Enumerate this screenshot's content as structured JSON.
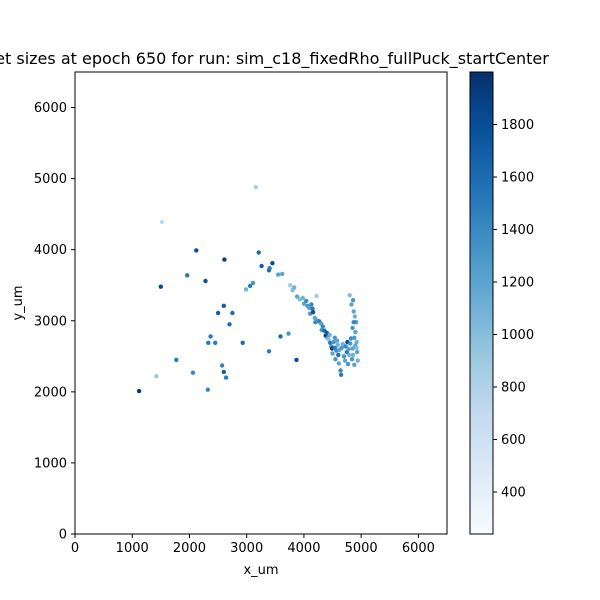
{
  "chart_data": {
    "type": "scatter",
    "title": "et sizes at epoch 650 for run: sim_c18_fixedRho_fullPuck_startCenter",
    "xlabel": "x_um",
    "ylabel": "y_um",
    "xlim": [
      0,
      6500
    ],
    "ylim": [
      0,
      6500
    ],
    "x_ticks": [
      0,
      1000,
      2000,
      3000,
      4000,
      5000,
      6000
    ],
    "y_ticks": [
      0,
      1000,
      2000,
      3000,
      4000,
      5000,
      6000
    ],
    "colorbar": {
      "colormap": "Blues",
      "min": 240,
      "max": 2000,
      "ticks": [
        400,
        600,
        800,
        1000,
        1200,
        1400,
        1600,
        1800
      ]
    },
    "grid": false,
    "legend": "none",
    "points": [
      [
        1120,
        2010,
        1950
      ],
      [
        1420,
        2220,
        900
      ],
      [
        1520,
        4390,
        720
      ],
      [
        1500,
        3480,
        1850
      ],
      [
        1770,
        2450,
        1500
      ],
      [
        1960,
        3640,
        1550
      ],
      [
        2060,
        2270,
        1400
      ],
      [
        2120,
        3990,
        1800
      ],
      [
        2280,
        3560,
        1800
      ],
      [
        2320,
        2030,
        1400
      ],
      [
        2330,
        2690,
        1500
      ],
      [
        2370,
        2780,
        1500
      ],
      [
        2450,
        2690,
        1500
      ],
      [
        2500,
        3110,
        1700
      ],
      [
        2570,
        2370,
        1450
      ],
      [
        2600,
        3210,
        1700
      ],
      [
        2600,
        2280,
        1700
      ],
      [
        2610,
        3860,
        1900
      ],
      [
        2640,
        2200,
        1500
      ],
      [
        2700,
        2950,
        1600
      ],
      [
        2750,
        3110,
        1600
      ],
      [
        2930,
        2690,
        1600
      ],
      [
        2990,
        3440,
        1100
      ],
      [
        3060,
        3490,
        1500
      ],
      [
        3110,
        3530,
        1300
      ],
      [
        3160,
        4880,
        850
      ],
      [
        3210,
        3960,
        1600
      ],
      [
        3260,
        3770,
        1700
      ],
      [
        3390,
        3710,
        1600
      ],
      [
        3400,
        3740,
        1500
      ],
      [
        3390,
        2570,
        1500
      ],
      [
        3450,
        3810,
        1800
      ],
      [
        3550,
        3650,
        1200
      ],
      [
        3620,
        3660,
        1200
      ],
      [
        3590,
        2780,
        1600
      ],
      [
        3730,
        2820,
        1300
      ],
      [
        3760,
        3500,
        900
      ],
      [
        3800,
        3430,
        1000
      ],
      [
        3830,
        3470,
        1100
      ],
      [
        3880,
        3340,
        1200
      ],
      [
        3870,
        2450,
        1800
      ],
      [
        3930,
        3300,
        1000
      ],
      [
        3980,
        3320,
        1100
      ],
      [
        4000,
        3240,
        1200
      ],
      [
        4040,
        3280,
        1400
      ],
      [
        4060,
        3210,
        1300
      ],
      [
        4090,
        3180,
        1200
      ],
      [
        4110,
        3100,
        1300
      ],
      [
        4130,
        3230,
        1400
      ],
      [
        4150,
        3170,
        1500
      ],
      [
        4160,
        3120,
        1800
      ],
      [
        4190,
        3040,
        1200
      ],
      [
        4200,
        2980,
        1400
      ],
      [
        4220,
        3350,
        900
      ],
      [
        4240,
        3000,
        1300
      ],
      [
        4270,
        2990,
        1500
      ],
      [
        4300,
        2960,
        1200
      ],
      [
        4310,
        2870,
        1300
      ],
      [
        4330,
        2920,
        1400
      ],
      [
        4360,
        2860,
        1600
      ],
      [
        4380,
        2790,
        1900
      ],
      [
        4400,
        2830,
        1700
      ],
      [
        4410,
        2760,
        1300
      ],
      [
        4430,
        2740,
        1000
      ],
      [
        4450,
        2800,
        1100
      ],
      [
        4460,
        2690,
        1500
      ],
      [
        4480,
        2640,
        1300
      ],
      [
        4490,
        2610,
        1900
      ],
      [
        4500,
        2540,
        1200
      ],
      [
        4520,
        2700,
        1300
      ],
      [
        4540,
        2620,
        1500
      ],
      [
        4550,
        2460,
        1300
      ],
      [
        4570,
        2580,
        1400
      ],
      [
        4590,
        2660,
        1100
      ],
      [
        4600,
        2520,
        1600
      ],
      [
        4610,
        2400,
        1200
      ],
      [
        4620,
        2590,
        1200
      ],
      [
        4640,
        2300,
        1400
      ],
      [
        4650,
        2240,
        1500
      ],
      [
        4660,
        2620,
        1300
      ],
      [
        4680,
        2670,
        1100
      ],
      [
        4700,
        2500,
        1300
      ],
      [
        4720,
        2440,
        1200
      ],
      [
        4730,
        2640,
        1400
      ],
      [
        4750,
        2560,
        1500
      ],
      [
        4760,
        2700,
        1800
      ],
      [
        4770,
        2390,
        1300
      ],
      [
        4780,
        2600,
        1200
      ],
      [
        4790,
        2520,
        1100
      ],
      [
        4800,
        3360,
        1000
      ],
      [
        4810,
        2680,
        1300
      ],
      [
        4820,
        2750,
        1400
      ],
      [
        4830,
        3230,
        1200
      ],
      [
        4840,
        2460,
        1300
      ],
      [
        4850,
        2610,
        1200
      ],
      [
        4860,
        3290,
        1300
      ],
      [
        4870,
        3130,
        1200
      ],
      [
        4880,
        2760,
        1300
      ],
      [
        4890,
        3060,
        1100
      ],
      [
        4900,
        2840,
        1200
      ],
      [
        4910,
        2980,
        1300
      ],
      [
        4920,
        2700,
        1100
      ],
      [
        4930,
        2560,
        1200
      ],
      [
        4940,
        2440,
        1100
      ],
      [
        4870,
        2980,
        1400
      ],
      [
        4850,
        2900,
        1300
      ],
      [
        4900,
        2650,
        1200
      ],
      [
        4860,
        2520,
        1100
      ],
      [
        4880,
        2380,
        1200
      ],
      [
        4920,
        2620,
        1000
      ],
      [
        4540,
        2760,
        1300
      ],
      [
        4580,
        2720,
        1200
      ]
    ]
  }
}
